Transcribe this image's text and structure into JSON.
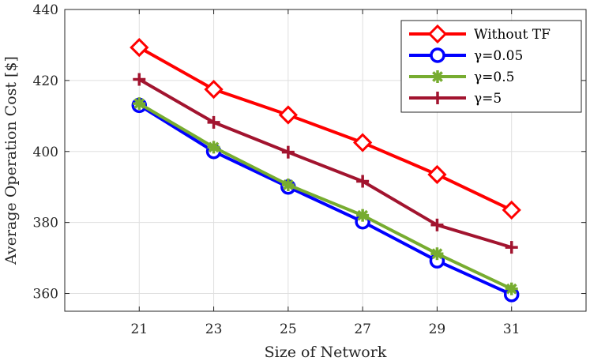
{
  "chart_data": {
    "type": "line",
    "title": "",
    "xlabel": "Size of Network",
    "ylabel": "Average Operation Cost [$]",
    "x": [
      21,
      23,
      25,
      27,
      29,
      31
    ],
    "xlim": [
      19,
      33
    ],
    "ylim": [
      355,
      440
    ],
    "xticks": [
      21,
      23,
      25,
      27,
      29,
      31
    ],
    "yticks": [
      360,
      380,
      400,
      420,
      440
    ],
    "grid": true,
    "legend_position": "top-right",
    "series": [
      {
        "name": "Without TF",
        "color": "#ff0000",
        "marker": "diamond",
        "values": [
          429.3,
          417.5,
          410.3,
          402.5,
          393.5,
          383.5
        ]
      },
      {
        "name": "γ=0.05",
        "color": "#0000ff",
        "marker": "circle",
        "values": [
          413.0,
          400.0,
          390.0,
          380.2,
          369.2,
          359.7
        ]
      },
      {
        "name": "γ=0.5",
        "color": "#77ac30",
        "marker": "asterisk",
        "values": [
          413.5,
          401.2,
          390.6,
          382.0,
          371.2,
          361.3
        ]
      },
      {
        "name": "γ=5",
        "color": "#a2142f",
        "marker": "plus",
        "values": [
          420.3,
          408.2,
          399.8,
          391.6,
          379.3,
          373.0
        ]
      }
    ]
  }
}
